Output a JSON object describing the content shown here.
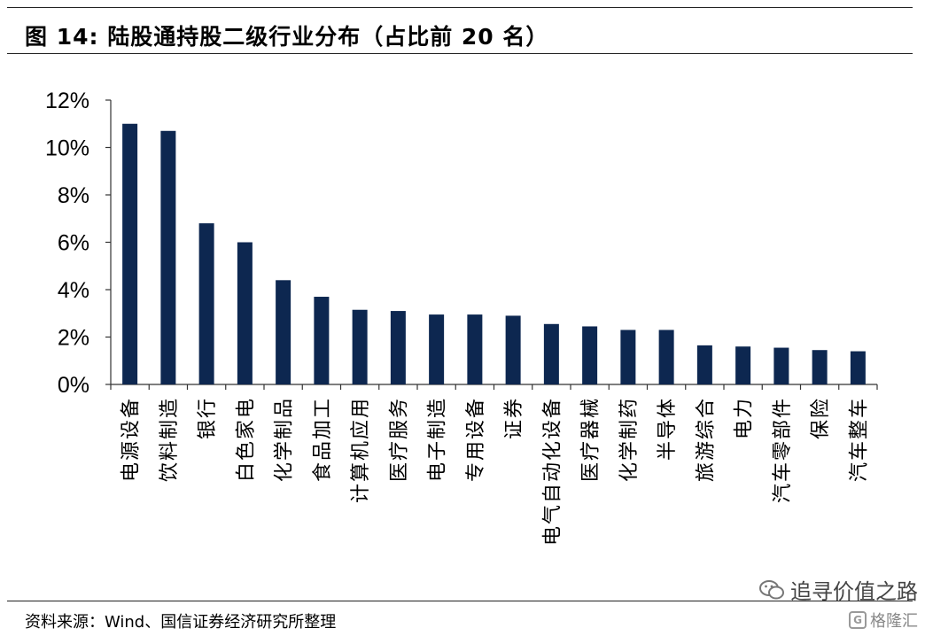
{
  "title": "图 14:  陆股通持股二级行业分布（占比前 20 名）",
  "source": "资料来源：Wind、国信证券经济研究所整理",
  "watermark": {
    "primary": "追寻价值之路",
    "secondary": "格隆汇",
    "icon_primary": "wechat-icon",
    "icon_secondary": "gelonghui-logo-icon"
  },
  "chart_data": {
    "type": "bar",
    "title": "",
    "xlabel": "",
    "ylabel": "",
    "ylim": [
      0,
      12
    ],
    "yticks": [
      "0%",
      "2%",
      "4%",
      "6%",
      "8%",
      "10%",
      "12%"
    ],
    "unit": "%",
    "grid": false,
    "legend": "none",
    "bar_color": "#0d2750",
    "categories": [
      "电源设备",
      "饮料制造",
      "银行",
      "白色家电",
      "化学制品",
      "食品加工",
      "计算机应用",
      "医疗服务",
      "电子制造",
      "专用设备",
      "证券",
      "电气自动化设备",
      "医疗器械",
      "化学制药",
      "半导体",
      "旅游综合",
      "电力",
      "汽车零部件",
      "保险",
      "汽车整车"
    ],
    "values": [
      11.0,
      10.7,
      6.8,
      6.0,
      4.4,
      3.7,
      3.15,
      3.1,
      2.95,
      2.95,
      2.9,
      2.55,
      2.45,
      2.3,
      2.3,
      1.65,
      1.6,
      1.55,
      1.45,
      1.4
    ]
  }
}
